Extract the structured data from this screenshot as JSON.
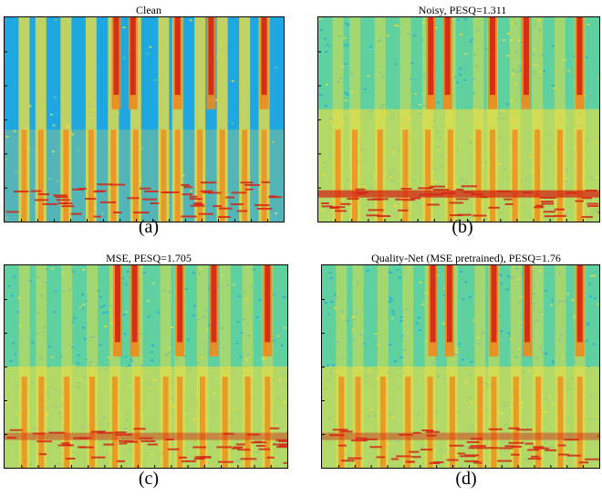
{
  "figure": {
    "panels": [
      {
        "title": "Clean",
        "label": "(a)"
      },
      {
        "title": "Noisy, PESQ=1.311",
        "label": "(b)"
      },
      {
        "title": "MSE, PESQ=1.705",
        "label": "(c)"
      },
      {
        "title": "Quality-Net (MSE pretrained), PESQ=1.76",
        "label": "(d)"
      }
    ]
  },
  "colors": {
    "background": "#1ea7e0",
    "mid": "#5fd0a0",
    "yellow": "#f5e03a",
    "orange": "#f08a1c",
    "red": "#d42516"
  }
}
